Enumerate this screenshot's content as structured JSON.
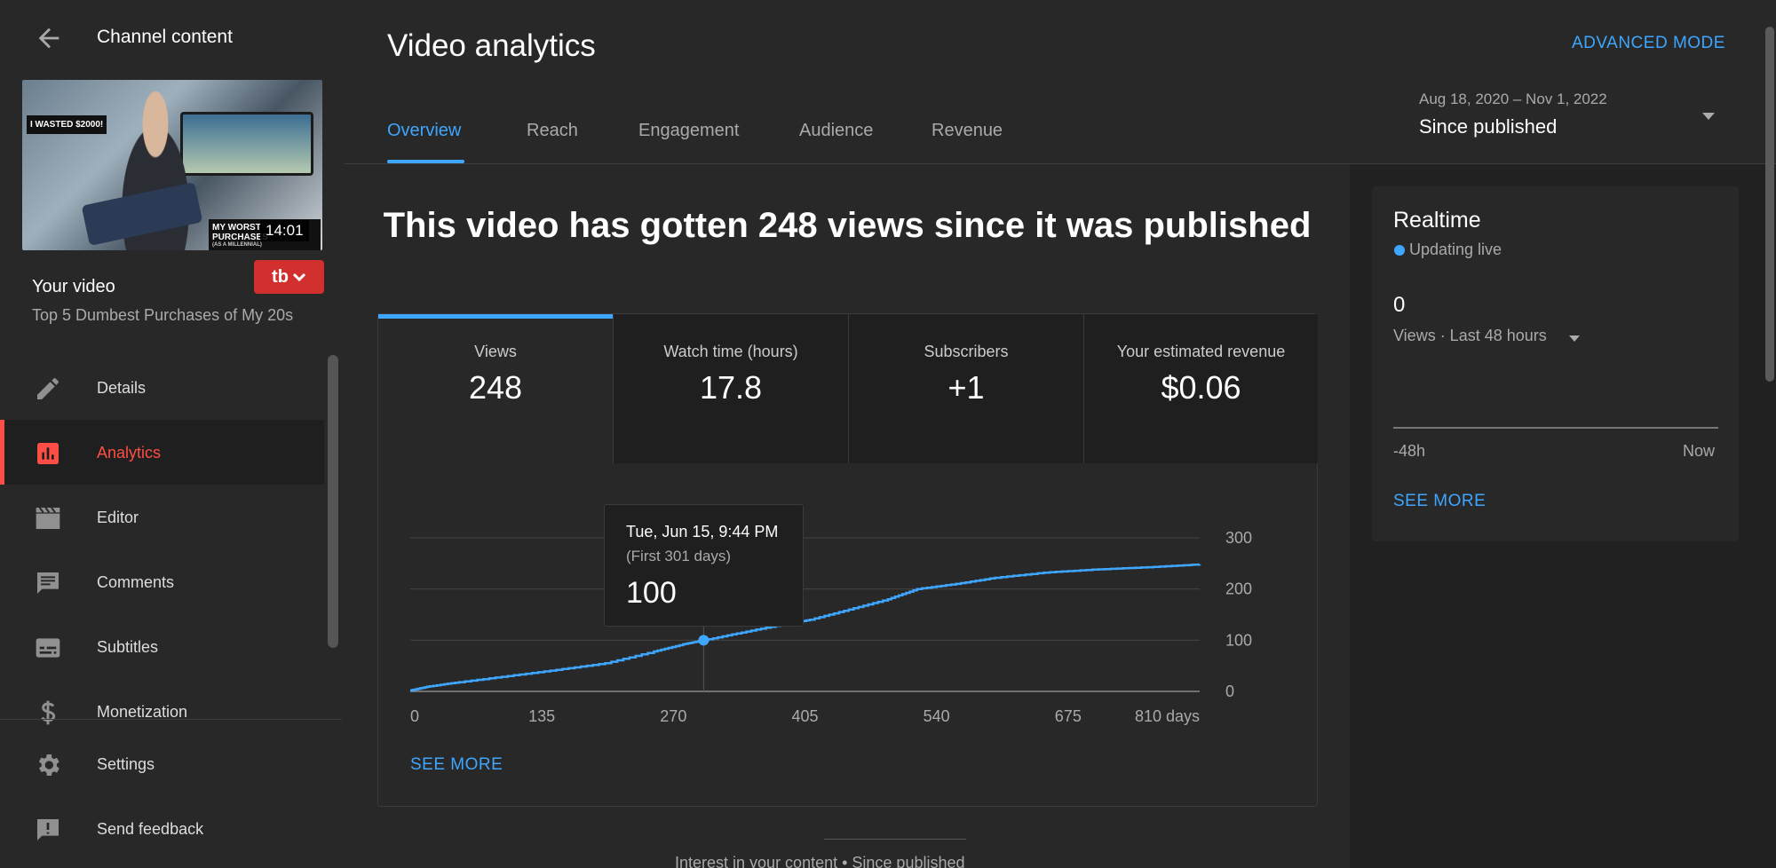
{
  "sidebar": {
    "title": "Channel content",
    "thumbnail": {
      "overlay_top": "I WASTED $2000!",
      "overlay_bottom": "MY WORST PURCHASES",
      "overlay_small": "(AS A MILLENNIAL)",
      "duration": "14:01"
    },
    "your_video_label": "Your video",
    "video_title": "Top 5 Dumbest Purchases of My 20s",
    "tb_label": "tb",
    "items": [
      {
        "label": "Details",
        "icon": "pencil-icon"
      },
      {
        "label": "Analytics",
        "icon": "analytics-icon",
        "active": true
      },
      {
        "label": "Editor",
        "icon": "clapperboard-icon"
      },
      {
        "label": "Comments",
        "icon": "comment-icon"
      },
      {
        "label": "Subtitles",
        "icon": "subtitles-icon"
      },
      {
        "label": "Monetization",
        "icon": "dollar-icon"
      }
    ],
    "bottom_items": [
      {
        "label": "Settings",
        "icon": "gear-icon"
      },
      {
        "label": "Send feedback",
        "icon": "feedback-icon"
      }
    ]
  },
  "header": {
    "title": "Video analytics",
    "advanced_mode": "ADVANCED MODE",
    "tabs": [
      {
        "label": "Overview",
        "active": true
      },
      {
        "label": "Reach"
      },
      {
        "label": "Engagement"
      },
      {
        "label": "Audience"
      },
      {
        "label": "Revenue"
      }
    ],
    "date_range": "Aug 18, 2020 – Nov 1, 2022",
    "date_label": "Since published"
  },
  "main": {
    "headline": "This video has gotten 248 views since it was published",
    "metrics": [
      {
        "label": "Views",
        "value": "248",
        "active": true
      },
      {
        "label": "Watch time (hours)",
        "value": "17.8"
      },
      {
        "label": "Subscribers",
        "value": "+1"
      },
      {
        "label": "Your estimated revenue",
        "value": "$0.06"
      }
    ],
    "tooltip": {
      "date": "Tue, Jun 15, 9:44 PM",
      "sub": "(First 301 days)",
      "value": "100"
    },
    "see_more": "SEE MORE",
    "interest_text": "Interest in your content • Since published"
  },
  "chart_data": {
    "type": "line",
    "x_tick_labels": [
      "0",
      "135",
      "270",
      "405",
      "540",
      "675",
      "810 days"
    ],
    "y_tick_labels": [
      "0",
      "100",
      "200",
      "300"
    ],
    "xlim": [
      0,
      810
    ],
    "ylim": [
      0,
      300
    ],
    "grid": true,
    "color": "#3ea6ff",
    "x": [
      0,
      20,
      50,
      100,
      150,
      200,
      250,
      280,
      301,
      340,
      380,
      410,
      450,
      490,
      520,
      560,
      600,
      650,
      700,
      750,
      800,
      810
    ],
    "y": [
      2,
      10,
      18,
      30,
      42,
      55,
      78,
      92,
      100,
      115,
      130,
      140,
      160,
      180,
      200,
      210,
      222,
      232,
      238,
      242,
      247,
      248
    ],
    "highlight": {
      "x": 301,
      "y": 100
    }
  },
  "realtime": {
    "title": "Realtime",
    "status": "Updating live",
    "value": "0",
    "selector": "Views · Last 48 hours",
    "axis_left": "-48h",
    "axis_right": "Now",
    "see_more": "SEE MORE"
  },
  "colors": {
    "accent": "#3ea6ff",
    "active_nav": "#ff4e45",
    "tb_brand": "#d22f2f"
  }
}
